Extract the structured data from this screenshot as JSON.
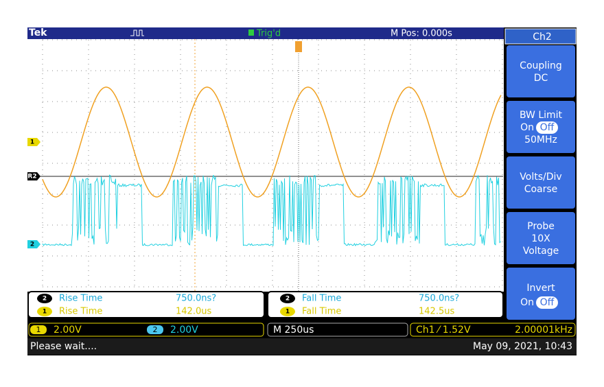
{
  "header": {
    "brand": "Tek",
    "trigger_status": "Trig'd",
    "position": "M Pos: 0.000s"
  },
  "menu": {
    "title": "Ch2",
    "buttons": [
      {
        "lines": [
          "Coupling",
          "DC"
        ]
      },
      {
        "lines": [
          "BW Limit",
          "50MHz"
        ],
        "toggle": [
          "On",
          "Off"
        ]
      },
      {
        "lines": [
          "Volts/Div",
          "Coarse"
        ]
      },
      {
        "lines": [
          "Probe",
          "10X",
          "Voltage"
        ]
      },
      {
        "lines": [
          "Invert"
        ],
        "toggle": [
          "On",
          "Off"
        ]
      }
    ]
  },
  "channel_markers": [
    "1",
    "R2",
    "2"
  ],
  "measurements": [
    {
      "badge": "2",
      "name": "Rise Time",
      "value": "750.0ns?"
    },
    {
      "badge": "1",
      "name": "Rise Time",
      "value": "142.0us"
    },
    {
      "badge": "2",
      "name": "Fall Time",
      "value": "750.0ns?"
    },
    {
      "badge": "1",
      "name": "Fall Time",
      "value": "142.5us"
    }
  ],
  "status": {
    "channels": [
      {
        "badge": "1",
        "scale": "2.00V"
      },
      {
        "badge": "2",
        "scale": "2.00V"
      }
    ],
    "timebase": "M 250us",
    "trigger": "Ch1 ⁄ 1.52V",
    "frequency": "2.00001kHz"
  },
  "footer": {
    "message": "Please wait....",
    "datetime": "May 09, 2021, 10:43"
  }
}
